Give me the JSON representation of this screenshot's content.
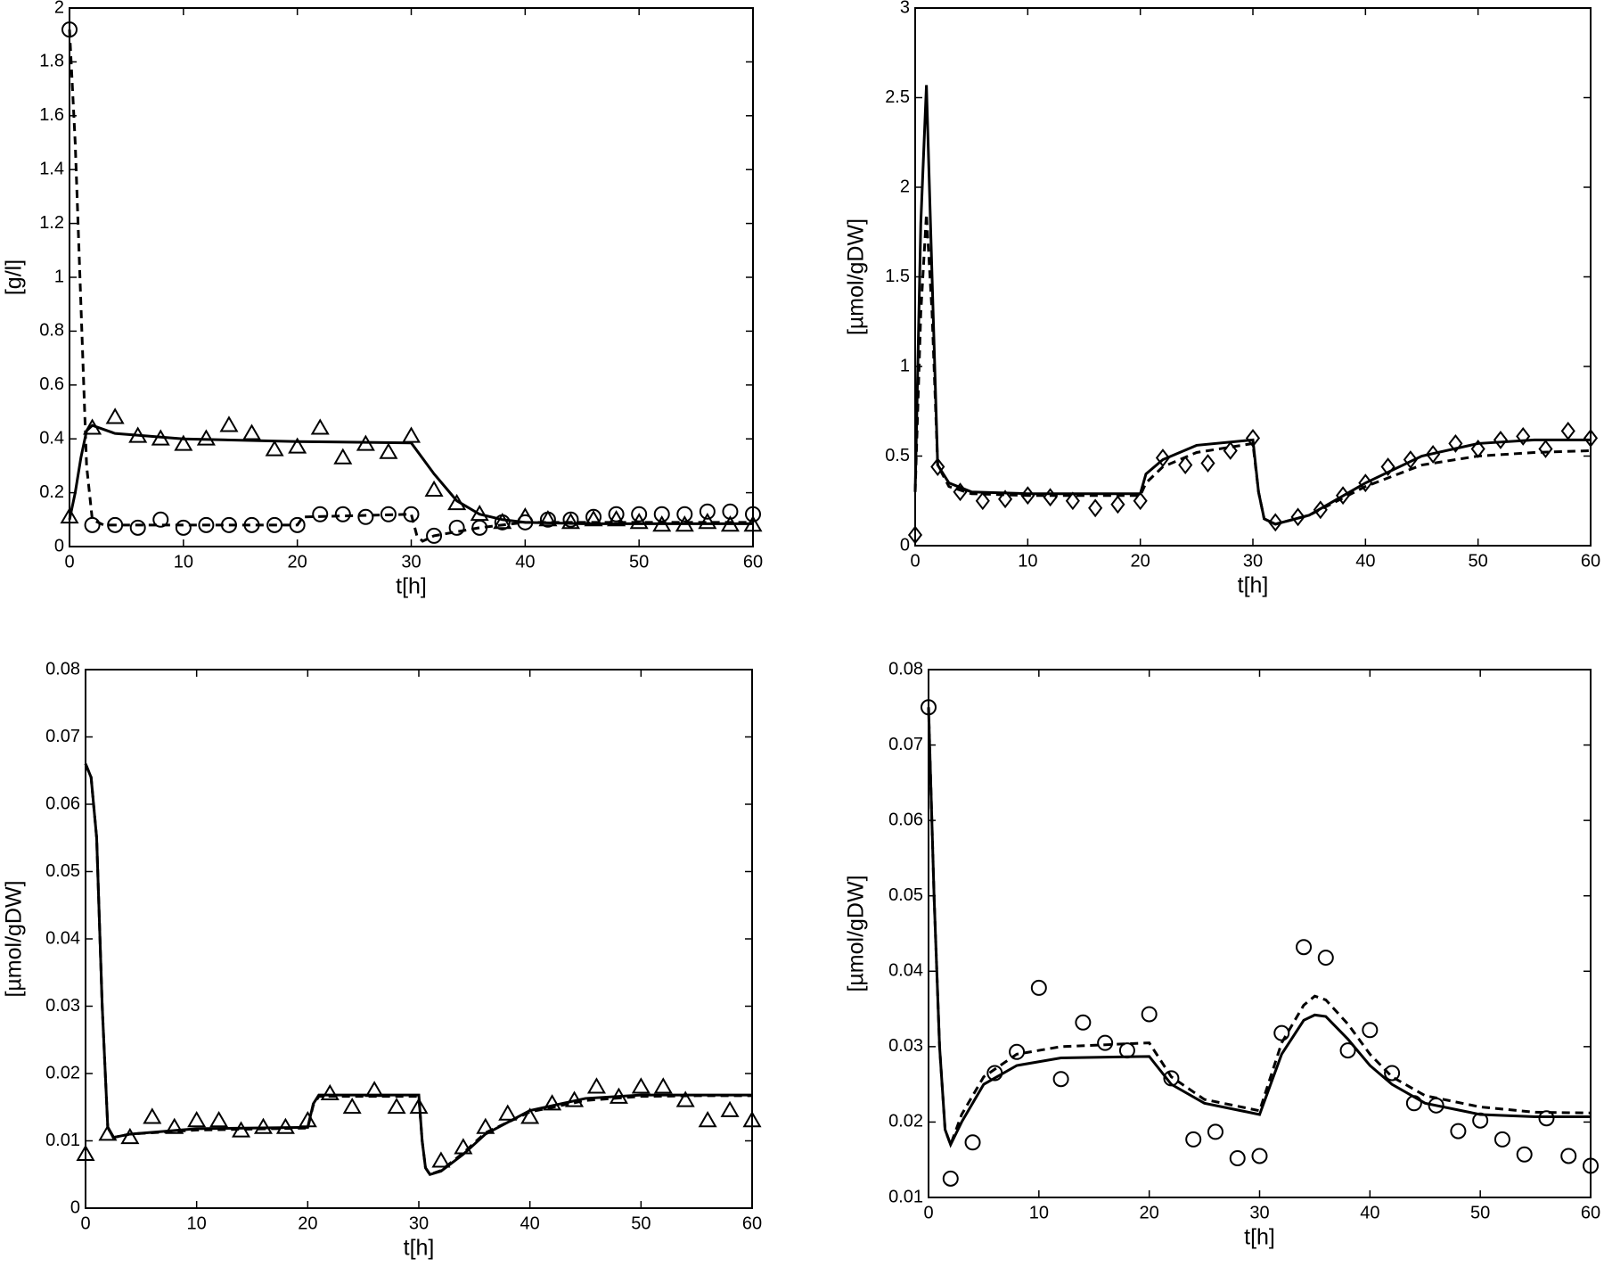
{
  "chart_data": [
    {
      "type": "line",
      "ylabel": "[g/l]",
      "xlabel": "t[h]",
      "xlim": [
        0,
        60
      ],
      "ylim": [
        0,
        2
      ],
      "xticks": [
        0,
        10,
        20,
        30,
        40,
        50,
        60
      ],
      "yticks": [
        0,
        0.2,
        0.4,
        0.6,
        0.8,
        1,
        1.2,
        1.4,
        1.6,
        1.8,
        2
      ],
      "series": [
        {
          "color": "#000000",
          "line": "none",
          "marker": "triangle",
          "x": [
            0,
            2,
            4,
            6,
            8,
            10,
            12,
            14,
            16,
            18,
            20,
            22,
            24,
            26,
            28,
            30,
            32,
            34,
            36,
            38,
            40,
            42,
            44,
            46,
            48,
            50,
            52,
            54,
            56,
            58,
            60
          ],
          "values": [
            0.11,
            0.44,
            0.48,
            0.41,
            0.4,
            0.38,
            0.4,
            0.45,
            0.42,
            0.36,
            0.37,
            0.44,
            0.33,
            0.38,
            0.35,
            0.41,
            0.21,
            0.16,
            0.12,
            0.09,
            0.11,
            0.1,
            0.09,
            0.1,
            0.1,
            0.09,
            0.08,
            0.08,
            0.09,
            0.08,
            0.08
          ]
        },
        {
          "color": "#000000",
          "line": "none",
          "marker": "circle",
          "x": [
            0,
            2,
            4,
            6,
            8,
            10,
            12,
            14,
            16,
            18,
            20,
            22,
            24,
            26,
            28,
            30,
            32,
            34,
            36,
            38,
            40,
            42,
            44,
            46,
            48,
            50,
            52,
            54,
            56,
            58,
            60
          ],
          "values": [
            1.92,
            0.08,
            0.08,
            0.07,
            0.1,
            0.07,
            0.08,
            0.08,
            0.08,
            0.08,
            0.08,
            0.12,
            0.12,
            0.11,
            0.12,
            0.12,
            0.04,
            0.07,
            0.07,
            0.09,
            0.09,
            0.1,
            0.1,
            0.11,
            0.12,
            0.12,
            0.12,
            0.12,
            0.13,
            0.13,
            0.12
          ]
        },
        {
          "color": "#000000",
          "line": "solid",
          "marker": "none",
          "x": [
            0,
            0.5,
            1,
            1.5,
            2,
            4,
            10,
            20,
            30,
            32,
            34,
            36,
            38,
            40,
            45,
            50,
            60
          ],
          "values": [
            0.1,
            0.2,
            0.33,
            0.43,
            0.45,
            0.42,
            0.4,
            0.39,
            0.385,
            0.27,
            0.17,
            0.12,
            0.1,
            0.09,
            0.085,
            0.085,
            0.085
          ]
        },
        {
          "color": "#000000",
          "line": "dashed",
          "marker": "none",
          "x": [
            0,
            0.5,
            1,
            1.5,
            2,
            3,
            10,
            20,
            20.5,
            30,
            30.5,
            31,
            32,
            36,
            40,
            50,
            60
          ],
          "values": [
            1.92,
            1.5,
            0.9,
            0.3,
            0.1,
            0.08,
            0.08,
            0.08,
            0.11,
            0.12,
            0.04,
            0.02,
            0.04,
            0.07,
            0.09,
            0.09,
            0.09
          ]
        }
      ]
    },
    {
      "type": "line",
      "ylabel": "[µmol/gDW]",
      "xlabel": "t[h]",
      "xlim": [
        0,
        60
      ],
      "ylim": [
        0,
        3
      ],
      "xticks": [
        0,
        10,
        20,
        30,
        40,
        50,
        60
      ],
      "yticks": [
        0,
        0.5,
        1,
        1.5,
        2,
        2.5,
        3
      ],
      "series": [
        {
          "color": "#000000",
          "line": "none",
          "marker": "diamond",
          "x": [
            0,
            2,
            4,
            6,
            8,
            10,
            12,
            14,
            16,
            18,
            20,
            22,
            24,
            26,
            28,
            30,
            32,
            34,
            36,
            38,
            40,
            42,
            44,
            46,
            48,
            50,
            52,
            54,
            56,
            58,
            60
          ],
          "values": [
            0.06,
            0.44,
            0.3,
            0.25,
            0.26,
            0.28,
            0.27,
            0.25,
            0.21,
            0.23,
            0.25,
            0.49,
            0.45,
            0.46,
            0.53,
            0.6,
            0.13,
            0.16,
            0.2,
            0.28,
            0.35,
            0.44,
            0.48,
            0.51,
            0.57,
            0.54,
            0.59,
            0.61,
            0.54,
            0.64,
            0.6
          ]
        },
        {
          "color": "#000000",
          "line": "solid",
          "marker": "none",
          "x": [
            0,
            0.5,
            1,
            1.5,
            2,
            3,
            5,
            10,
            20,
            20.5,
            22,
            25,
            30,
            30.5,
            31,
            32,
            35,
            40,
            45,
            50,
            55,
            60
          ],
          "values": [
            0.3,
            1.8,
            2.57,
            1.5,
            0.45,
            0.35,
            0.3,
            0.29,
            0.29,
            0.4,
            0.48,
            0.56,
            0.59,
            0.3,
            0.15,
            0.12,
            0.17,
            0.35,
            0.5,
            0.57,
            0.59,
            0.59
          ]
        },
        {
          "color": "#000000",
          "line": "dashed",
          "marker": "none",
          "x": [
            0,
            0.5,
            1,
            1.5,
            2,
            3,
            5,
            10,
            20,
            20.5,
            22,
            25,
            30,
            30.5,
            31,
            32,
            35,
            40,
            45,
            50,
            55,
            60
          ],
          "values": [
            0.3,
            1.3,
            1.85,
            1.3,
            0.45,
            0.33,
            0.29,
            0.28,
            0.28,
            0.35,
            0.44,
            0.52,
            0.57,
            0.3,
            0.15,
            0.12,
            0.17,
            0.33,
            0.45,
            0.5,
            0.52,
            0.53
          ]
        }
      ]
    },
    {
      "type": "line",
      "ylabel": "[µmol/gDW]",
      "xlabel": "t[h]",
      "xlim": [
        0,
        60
      ],
      "ylim": [
        0,
        0.08
      ],
      "xticks": [
        0,
        10,
        20,
        30,
        40,
        50,
        60
      ],
      "yticks": [
        0,
        0.01,
        0.02,
        0.03,
        0.04,
        0.05,
        0.06,
        0.07,
        0.08
      ],
      "series": [
        {
          "color": "#000000",
          "line": "none",
          "marker": "triangle",
          "x": [
            0,
            2,
            4,
            6,
            8,
            10,
            12,
            14,
            16,
            18,
            20,
            22,
            24,
            26,
            28,
            30,
            32,
            34,
            36,
            38,
            40,
            42,
            44,
            46,
            48,
            50,
            52,
            54,
            56,
            58,
            60
          ],
          "values": [
            0.008,
            0.011,
            0.0105,
            0.0135,
            0.012,
            0.013,
            0.013,
            0.0115,
            0.012,
            0.012,
            0.013,
            0.017,
            0.015,
            0.0175,
            0.015,
            0.015,
            0.007,
            0.009,
            0.012,
            0.014,
            0.0135,
            0.0155,
            0.016,
            0.018,
            0.0165,
            0.018,
            0.018,
            0.016,
            0.013,
            0.0145,
            0.013
          ]
        },
        {
          "color": "#000000",
          "line": "solid",
          "marker": "none",
          "x": [
            0,
            0.5,
            1,
            1.5,
            2,
            2.5,
            4,
            10,
            20,
            20.5,
            21,
            30,
            30.3,
            30.6,
            31,
            32,
            34,
            36,
            40,
            45,
            50,
            55,
            60
          ],
          "values": [
            0.066,
            0.064,
            0.055,
            0.03,
            0.012,
            0.0105,
            0.011,
            0.0118,
            0.012,
            0.0155,
            0.0168,
            0.0168,
            0.01,
            0.006,
            0.005,
            0.0055,
            0.008,
            0.011,
            0.0145,
            0.0163,
            0.0168,
            0.0168,
            0.0168
          ]
        },
        {
          "color": "#000000",
          "line": "dashed",
          "marker": "none",
          "x": [
            0,
            0.5,
            1,
            1.5,
            2,
            2.5,
            4,
            10,
            20,
            20.5,
            21,
            30,
            30.3,
            30.6,
            31,
            32,
            34,
            36,
            40,
            45,
            50,
            55,
            60
          ],
          "values": [
            0.066,
            0.064,
            0.055,
            0.03,
            0.012,
            0.0105,
            0.011,
            0.0116,
            0.0119,
            0.0153,
            0.0166,
            0.0166,
            0.01,
            0.006,
            0.005,
            0.0056,
            0.0082,
            0.0112,
            0.0143,
            0.016,
            0.0166,
            0.0167,
            0.0167
          ]
        }
      ]
    },
    {
      "type": "line",
      "ylabel": "[µmol/gDW]",
      "xlabel": "t[h]",
      "xlim": [
        0,
        60
      ],
      "ylim": [
        0.01,
        0.08
      ],
      "xticks": [
        0,
        10,
        20,
        30,
        40,
        50,
        60
      ],
      "yticks": [
        0.01,
        0.02,
        0.03,
        0.04,
        0.05,
        0.06,
        0.07,
        0.08
      ],
      "series": [
        {
          "color": "#000000",
          "line": "none",
          "marker": "circle",
          "x": [
            0,
            2,
            4,
            6,
            8,
            10,
            12,
            14,
            16,
            18,
            20,
            22,
            24,
            26,
            28,
            30,
            32,
            34,
            36,
            38,
            40,
            42,
            44,
            46,
            48,
            50,
            52,
            54,
            56,
            58,
            60
          ],
          "values": [
            0.075,
            0.0125,
            0.0173,
            0.0265,
            0.0293,
            0.0378,
            0.0257,
            0.0332,
            0.0305,
            0.0295,
            0.0343,
            0.0258,
            0.0177,
            0.0187,
            0.0152,
            0.0155,
            0.0318,
            0.0432,
            0.0418,
            0.0295,
            0.0322,
            0.0265,
            0.0225,
            0.0222,
            0.0188,
            0.0202,
            0.0177,
            0.0157,
            0.0205,
            0.0155,
            0.0142
          ]
        },
        {
          "color": "#000000",
          "line": "solid",
          "marker": "none",
          "x": [
            0,
            0.5,
            1,
            1.5,
            2,
            3,
            5,
            8,
            12,
            20,
            22,
            25,
            30,
            31,
            32,
            34,
            35,
            36,
            38,
            40,
            42,
            45,
            50,
            55,
            60
          ],
          "values": [
            0.075,
            0.05,
            0.03,
            0.019,
            0.017,
            0.02,
            0.025,
            0.0275,
            0.0285,
            0.0287,
            0.025,
            0.0225,
            0.021,
            0.025,
            0.029,
            0.0335,
            0.0342,
            0.034,
            0.031,
            0.0275,
            0.025,
            0.0225,
            0.021,
            0.0207,
            0.0207
          ]
        },
        {
          "color": "#000000",
          "line": "dashed",
          "marker": "none",
          "x": [
            0,
            0.5,
            1,
            1.5,
            2,
            3,
            5,
            8,
            12,
            20,
            22,
            25,
            30,
            31,
            32,
            34,
            35,
            36,
            38,
            40,
            42,
            45,
            50,
            55,
            60
          ],
          "values": [
            0.075,
            0.05,
            0.03,
            0.019,
            0.017,
            0.021,
            0.026,
            0.029,
            0.03,
            0.0305,
            0.026,
            0.023,
            0.0215,
            0.026,
            0.0305,
            0.0355,
            0.0367,
            0.0362,
            0.033,
            0.029,
            0.026,
            0.0235,
            0.022,
            0.0213,
            0.0212
          ]
        }
      ]
    }
  ]
}
